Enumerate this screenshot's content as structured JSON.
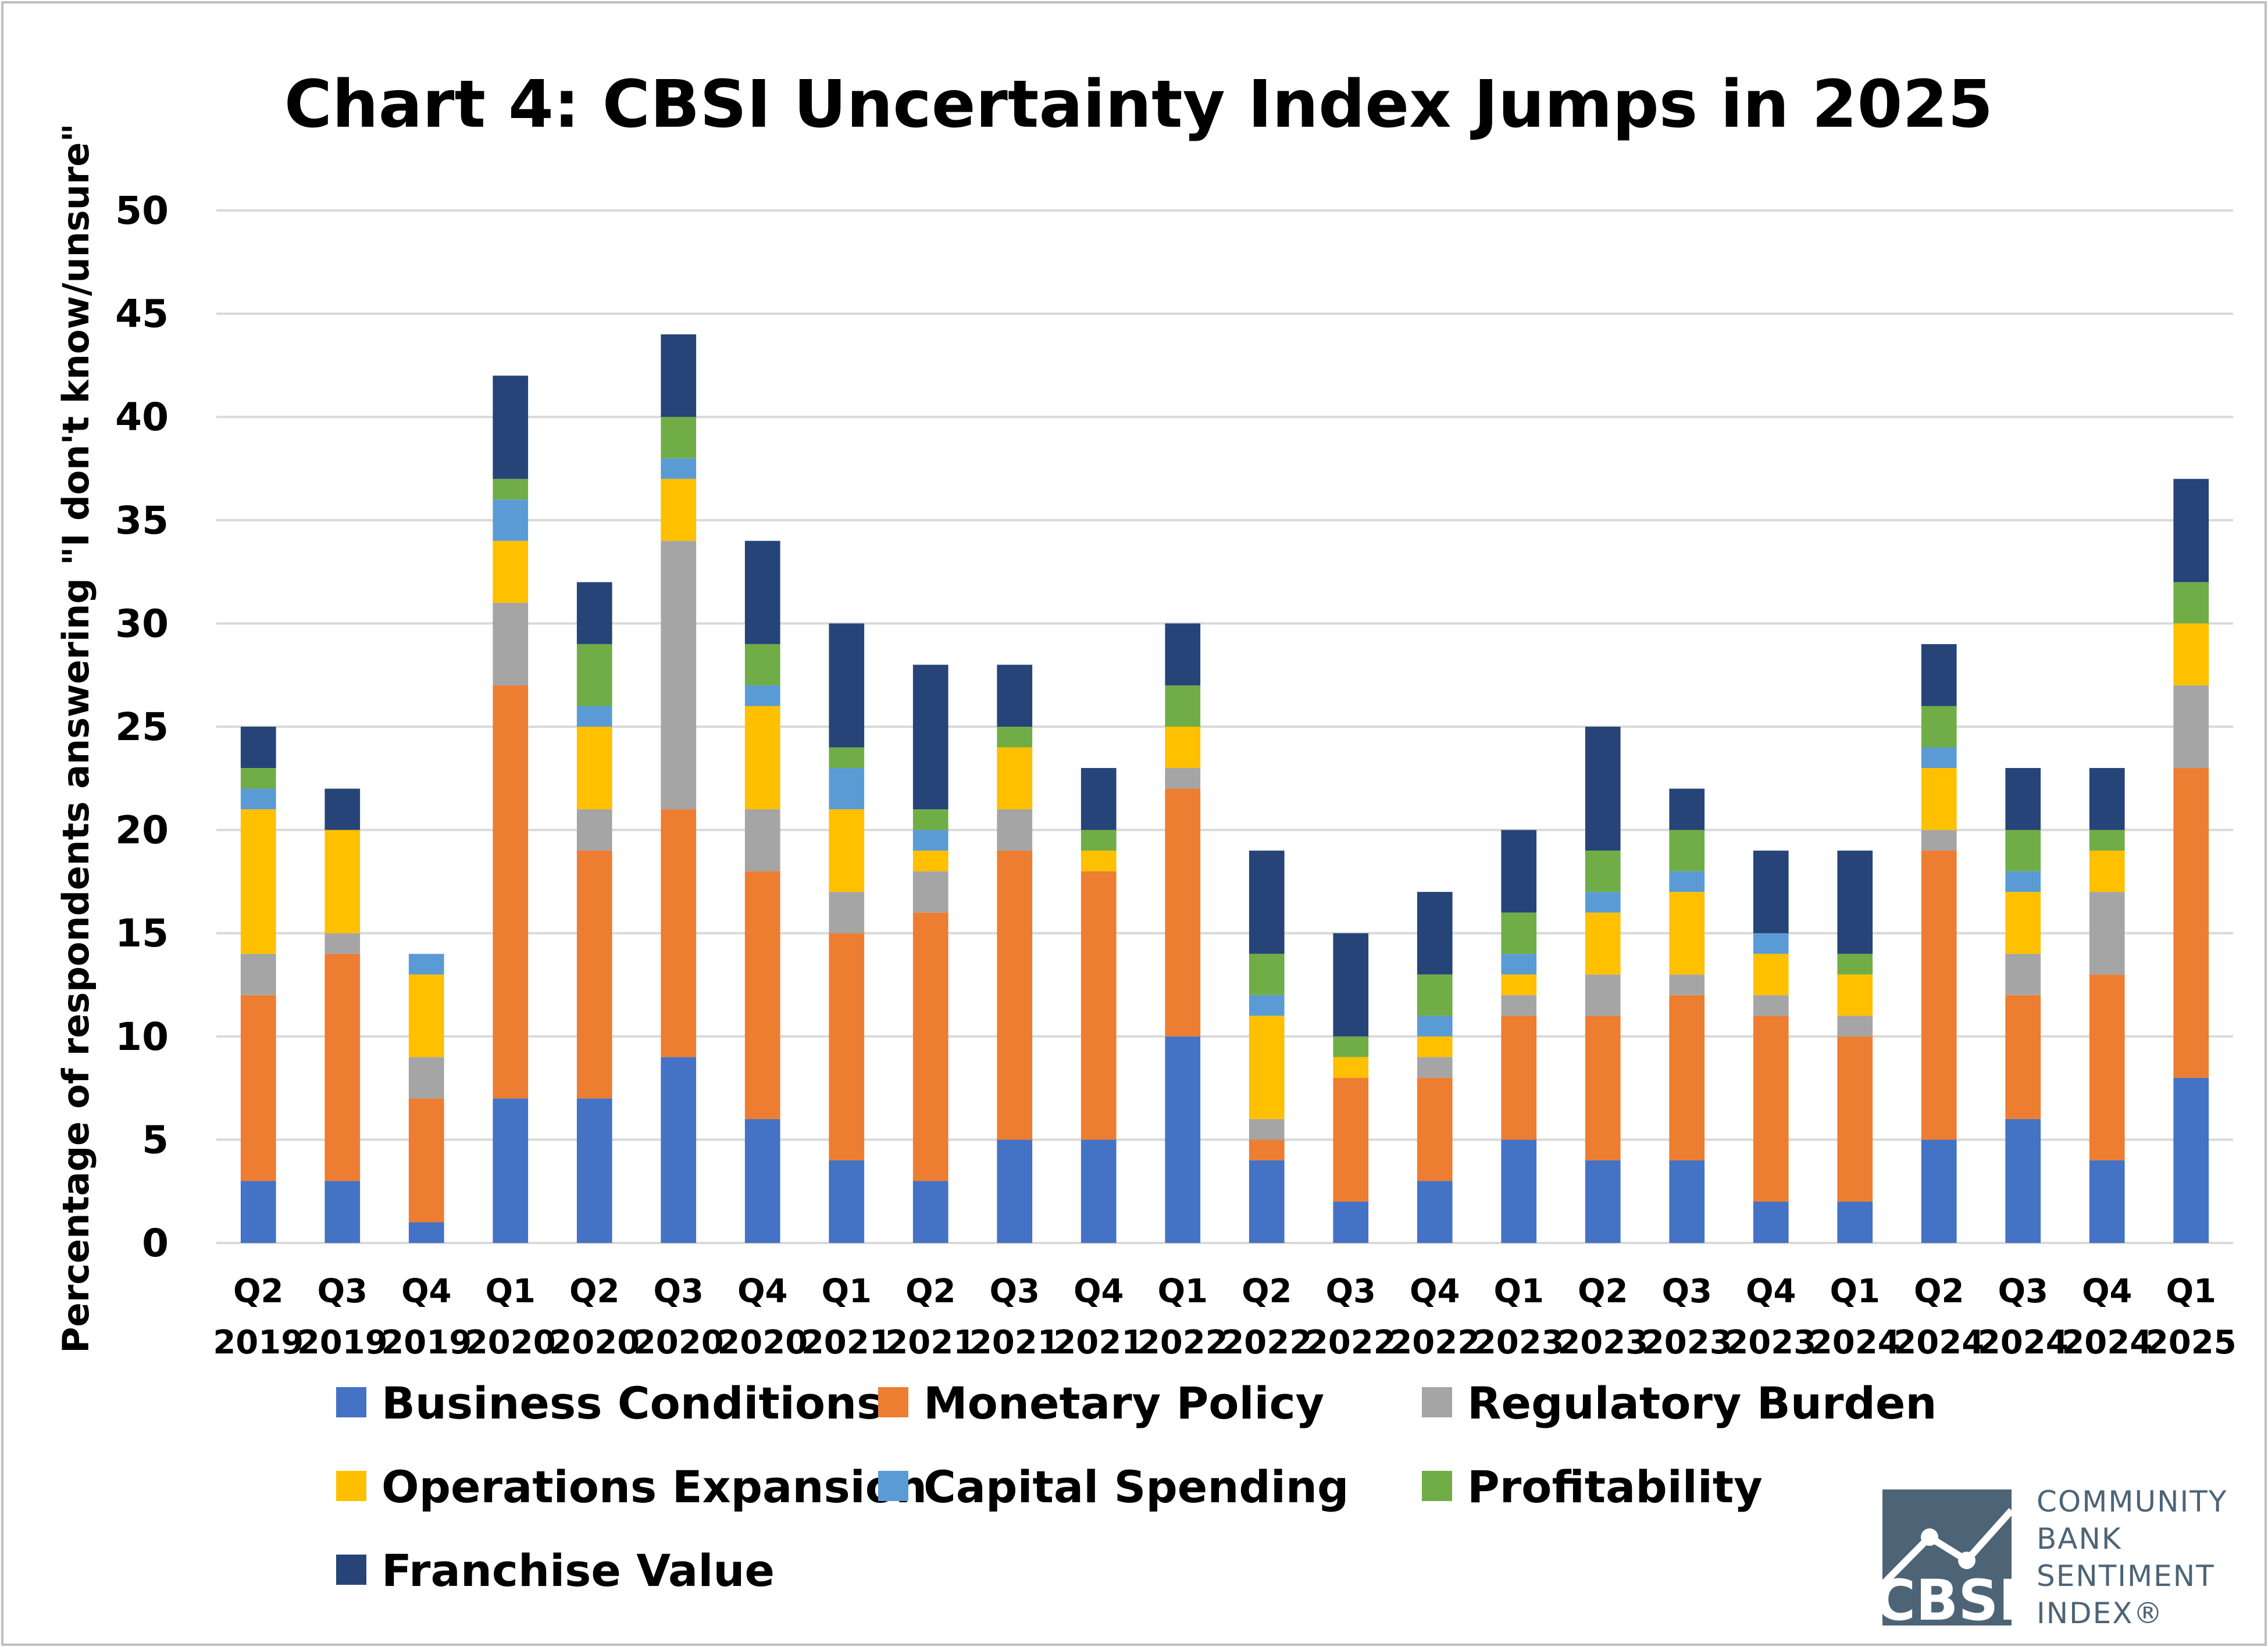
{
  "chart_data": {
    "type": "bar",
    "stacked": true,
    "title": "Chart 4: CBSI Uncertainty Index Jumps in 2025",
    "ylabel": "Percentage of respondents answering \"I don't know/unsure\"",
    "xlabel": "",
    "ylim": [
      0,
      50
    ],
    "yticks": [
      0,
      5,
      10,
      15,
      20,
      25,
      30,
      35,
      40,
      45,
      50
    ],
    "grid": true,
    "legend_position": "bottom",
    "categories": [
      {
        "quarter": "Q2",
        "year": "2019"
      },
      {
        "quarter": "Q3",
        "year": "2019"
      },
      {
        "quarter": "Q4",
        "year": "2019"
      },
      {
        "quarter": "Q1",
        "year": "2020"
      },
      {
        "quarter": "Q2",
        "year": "2020"
      },
      {
        "quarter": "Q3",
        "year": "2020"
      },
      {
        "quarter": "Q4",
        "year": "2020"
      },
      {
        "quarter": "Q1",
        "year": "2021"
      },
      {
        "quarter": "Q2",
        "year": "2021"
      },
      {
        "quarter": "Q3",
        "year": "2021"
      },
      {
        "quarter": "Q4",
        "year": "2021"
      },
      {
        "quarter": "Q1",
        "year": "2022"
      },
      {
        "quarter": "Q2",
        "year": "2022"
      },
      {
        "quarter": "Q3",
        "year": "2022"
      },
      {
        "quarter": "Q4",
        "year": "2022"
      },
      {
        "quarter": "Q1",
        "year": "2023"
      },
      {
        "quarter": "Q2",
        "year": "2023"
      },
      {
        "quarter": "Q3",
        "year": "2023"
      },
      {
        "quarter": "Q4",
        "year": "2023"
      },
      {
        "quarter": "Q1",
        "year": "2024"
      },
      {
        "quarter": "Q2",
        "year": "2024"
      },
      {
        "quarter": "Q3",
        "year": "2024"
      },
      {
        "quarter": "Q4",
        "year": "2024"
      },
      {
        "quarter": "Q1",
        "year": "2025"
      }
    ],
    "series": [
      {
        "name": "Business Conditions",
        "color": "#4472c4",
        "values": [
          3,
          3,
          1,
          7,
          7,
          9,
          6,
          4,
          3,
          5,
          5,
          10,
          4,
          2,
          3,
          5,
          4,
          4,
          2,
          2,
          5,
          6,
          4,
          8
        ]
      },
      {
        "name": "Monetary Policy",
        "color": "#ed7d31",
        "values": [
          9,
          11,
          6,
          20,
          12,
          12,
          12,
          11,
          13,
          14,
          13,
          12,
          1,
          6,
          5,
          6,
          7,
          8,
          9,
          8,
          14,
          6,
          9,
          15
        ]
      },
      {
        "name": "Regulatory Burden",
        "color": "#a5a5a5",
        "values": [
          2,
          1,
          2,
          4,
          2,
          13,
          3,
          2,
          2,
          2,
          0,
          1,
          1,
          0,
          1,
          1,
          2,
          1,
          1,
          1,
          1,
          2,
          4,
          4
        ]
      },
      {
        "name": "Operations Expansion",
        "color": "#ffc000",
        "values": [
          7,
          5,
          4,
          3,
          4,
          3,
          5,
          4,
          1,
          3,
          1,
          2,
          5,
          1,
          1,
          1,
          3,
          4,
          2,
          2,
          3,
          3,
          2,
          3
        ]
      },
      {
        "name": "Capital Spending",
        "color": "#5b9bd5",
        "values": [
          1,
          0,
          1,
          2,
          1,
          1,
          1,
          2,
          1,
          0,
          0,
          0,
          1,
          0,
          1,
          1,
          1,
          1,
          1,
          0,
          1,
          1,
          0,
          0
        ]
      },
      {
        "name": "Profitability",
        "color": "#70ad47",
        "values": [
          1,
          0,
          0,
          1,
          3,
          2,
          2,
          1,
          1,
          1,
          1,
          2,
          2,
          1,
          2,
          2,
          2,
          2,
          0,
          1,
          2,
          2,
          1,
          2
        ]
      },
      {
        "name": "Franchise Value",
        "color": "#264478",
        "values": [
          2,
          2,
          0,
          5,
          3,
          4,
          5,
          6,
          7,
          3,
          3,
          3,
          5,
          5,
          4,
          4,
          6,
          2,
          4,
          5,
          3,
          3,
          3,
          5
        ]
      }
    ]
  },
  "logo": {
    "mark_text": "CBSI",
    "lines": [
      "COMMUNITY",
      "BANK",
      "SENTIMENT",
      "INDEX®"
    ],
    "color": "#4d6477"
  }
}
